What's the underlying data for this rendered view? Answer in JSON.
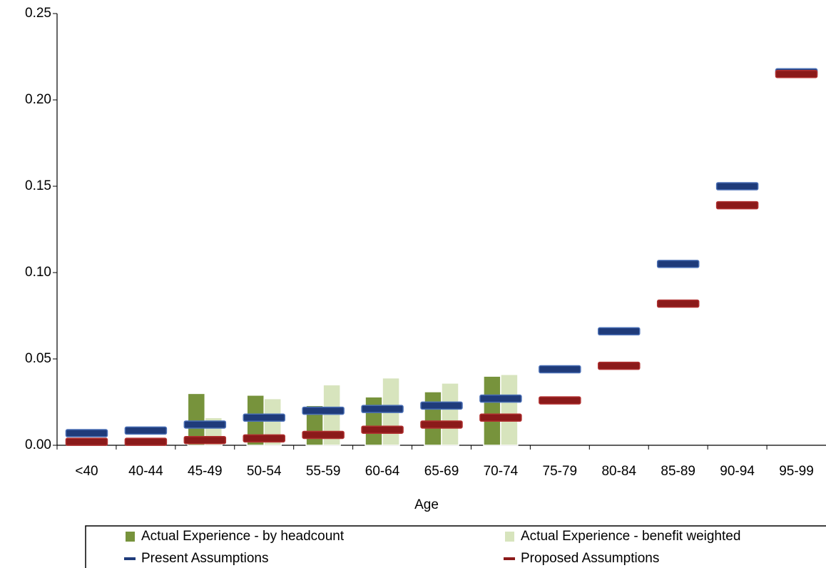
{
  "chart_data": {
    "type": "bar",
    "x_label": "Age",
    "categories": [
      "<40",
      "40-44",
      "45-49",
      "50-54",
      "55-59",
      "60-64",
      "65-69",
      "70-74",
      "75-79",
      "80-84",
      "85-89",
      "90-94",
      "95-99"
    ],
    "ylim": [
      0,
      0.25
    ],
    "yticks": [
      {
        "value": 0,
        "label": "0.00"
      },
      {
        "value": 0.05,
        "label": "0.05"
      },
      {
        "value": 0.1,
        "label": "0.10"
      },
      {
        "value": 0.15,
        "label": "0.15"
      },
      {
        "value": 0.2,
        "label": "0.20"
      },
      {
        "value": 0.25,
        "label": "0.25"
      }
    ],
    "series": [
      {
        "name": "Actual Experience - by headcount",
        "kind": "bar",
        "color": "#77933c",
        "values": [
          null,
          null,
          0.03,
          0.029,
          0.023,
          0.028,
          0.031,
          0.04,
          null,
          null,
          null,
          null,
          null
        ]
      },
      {
        "name": "Actual Experience - benefit weighted",
        "kind": "bar",
        "color": "#d7e4bd",
        "values": [
          null,
          null,
          0.016,
          0.027,
          0.035,
          0.039,
          0.036,
          0.041,
          null,
          null,
          null,
          null,
          null
        ]
      },
      {
        "name": "Present Assumptions",
        "kind": "marker",
        "color": "#1f3b7a",
        "values": [
          0.007,
          0.0085,
          0.012,
          0.016,
          0.02,
          0.021,
          0.023,
          0.027,
          0.044,
          0.066,
          0.105,
          0.15,
          0.216
        ]
      },
      {
        "name": "Proposed Assumptions",
        "kind": "marker",
        "color": "#8b1a1a",
        "values": [
          0.002,
          0.002,
          0.003,
          0.004,
          0.006,
          0.009,
          0.012,
          0.016,
          0.026,
          0.046,
          0.082,
          0.139,
          0.215
        ]
      }
    ]
  }
}
